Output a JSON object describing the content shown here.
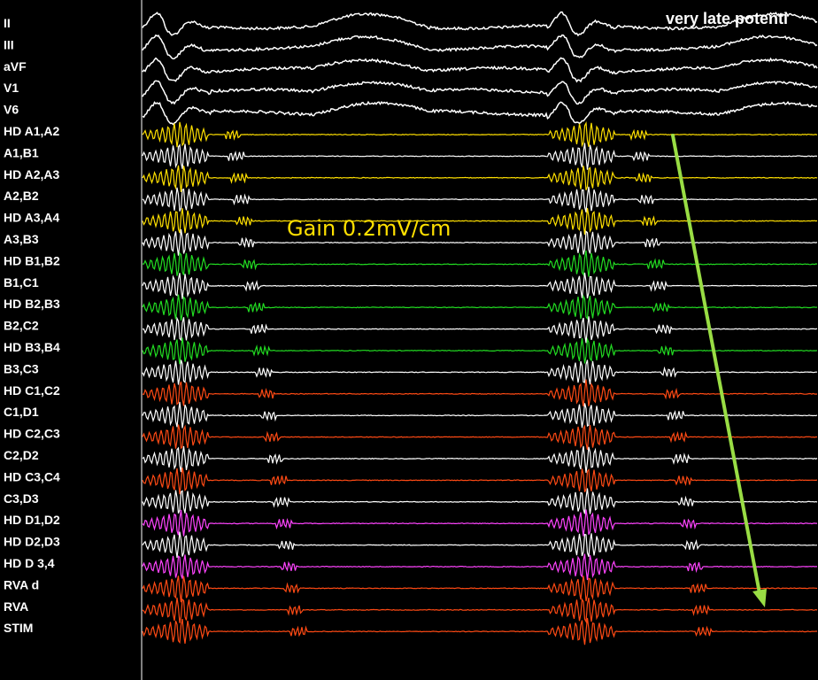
{
  "recording": {
    "channels": [
      {
        "label": "II",
        "color": "#ffffff"
      },
      {
        "label": "III",
        "color": "#ffffff"
      },
      {
        "label": "aVF",
        "color": "#ffffff"
      },
      {
        "label": "V1",
        "color": "#ffffff"
      },
      {
        "label": "V6",
        "color": "#ffffff"
      },
      {
        "label": "HD A1,A2",
        "color": "#ffe000"
      },
      {
        "label": "A1,B1",
        "color": "#ffffff"
      },
      {
        "label": "HD A2,A3",
        "color": "#ffe000"
      },
      {
        "label": "A2,B2",
        "color": "#ffffff"
      },
      {
        "label": "HD A3,A4",
        "color": "#ffe000"
      },
      {
        "label": "A3,B3",
        "color": "#ffffff"
      },
      {
        "label": "HD B1,B2",
        "color": "#22dd22"
      },
      {
        "label": "B1,C1",
        "color": "#ffffff"
      },
      {
        "label": "HD B2,B3",
        "color": "#22dd22"
      },
      {
        "label": "B2,C2",
        "color": "#ffffff"
      },
      {
        "label": "HD B3,B4",
        "color": "#22dd22"
      },
      {
        "label": "B3,C3",
        "color": "#ffffff"
      },
      {
        "label": "HD C1,C2",
        "color": "#ff4a14"
      },
      {
        "label": "C1,D1",
        "color": "#ffffff"
      },
      {
        "label": "HD C2,C3",
        "color": "#ff4a14"
      },
      {
        "label": "C2,D2",
        "color": "#ffffff"
      },
      {
        "label": "HD C3,C4",
        "color": "#ff4a14"
      },
      {
        "label": "C3,D3",
        "color": "#ffffff"
      },
      {
        "label": "HD D1,D2",
        "color": "#ff44ff"
      },
      {
        "label": "HD D2,D3",
        "color": "#ffffff"
      },
      {
        "label": "HD D 3,4",
        "color": "#ff44ff"
      },
      {
        "label": "RVA d",
        "color": "#ff4a14"
      },
      {
        "label": "RVA",
        "color": "#ff4a14"
      },
      {
        "label": "STIM",
        "color": "#ff4a14"
      }
    ],
    "gain_annotation": "Gain 0.2mV/cm",
    "header_annotation": "very late potenti",
    "arrow_color": "#99dd44",
    "gain_color": "#ffe000"
  }
}
